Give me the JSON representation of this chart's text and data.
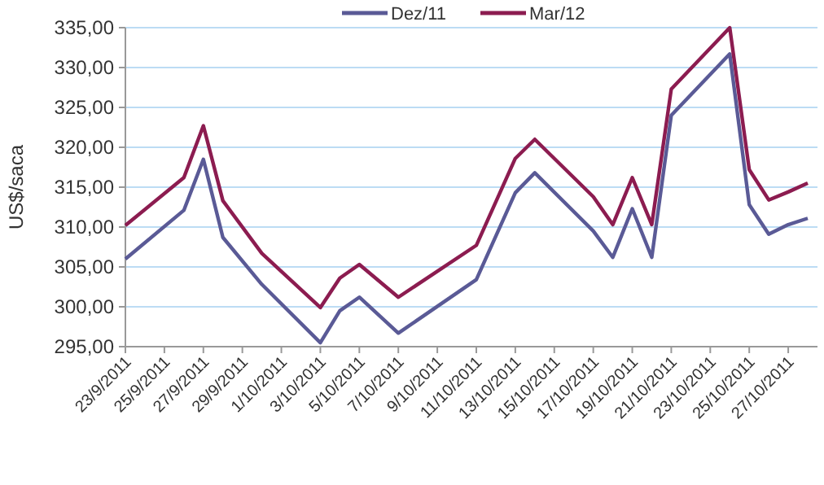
{
  "chart_data": {
    "type": "line",
    "ylabel": "US$/saca",
    "x": [
      "2011-09-23",
      "2011-09-26",
      "2011-09-27",
      "2011-09-28",
      "2011-09-30",
      "2011-10-03",
      "2011-10-04",
      "2011-10-05",
      "2011-10-07",
      "2011-10-11",
      "2011-10-13",
      "2011-10-14",
      "2011-10-17",
      "2011-10-18",
      "2011-10-19",
      "2011-10-20",
      "2011-10-21",
      "2011-10-24",
      "2011-10-25",
      "2011-10-26",
      "2011-10-27",
      "2011-10-28"
    ],
    "series": [
      {
        "name": "Dez/11",
        "color": "#5a5a96",
        "values": [
          306.0,
          312.1,
          318.5,
          308.7,
          302.8,
          295.5,
          299.5,
          301.2,
          296.7,
          303.4,
          314.3,
          316.8,
          309.5,
          306.2,
          312.3,
          306.2,
          324.0,
          331.7,
          312.8,
          309.1,
          310.3,
          311.1
        ]
      },
      {
        "name": "Mar/12",
        "color": "#8c1c50",
        "values": [
          310.2,
          316.2,
          322.7,
          313.3,
          306.7,
          299.9,
          303.6,
          305.3,
          301.2,
          307.7,
          318.6,
          321.0,
          313.8,
          310.3,
          316.2,
          310.3,
          327.3,
          335.0,
          317.2,
          313.4,
          314.4,
          315.5
        ]
      }
    ],
    "xlim": [
      "2011-09-23",
      "2011-10-28T12:00"
    ],
    "xticks": [
      {
        "value": "2011-09-23",
        "label": "23/9/2011"
      },
      {
        "value": "2011-09-25",
        "label": "25/9/2011"
      },
      {
        "value": "2011-09-27",
        "label": "27/9/2011"
      },
      {
        "value": "2011-09-29",
        "label": "29/9/2011"
      },
      {
        "value": "2011-10-01",
        "label": "1/10/2011"
      },
      {
        "value": "2011-10-03",
        "label": "3/10/2011"
      },
      {
        "value": "2011-10-05",
        "label": "5/10/2011"
      },
      {
        "value": "2011-10-07",
        "label": "7/10/2011"
      },
      {
        "value": "2011-10-09",
        "label": "9/10/2011"
      },
      {
        "value": "2011-10-11",
        "label": "11/10/2011"
      },
      {
        "value": "2011-10-13",
        "label": "13/10/2011"
      },
      {
        "value": "2011-10-15",
        "label": "15/10/2011"
      },
      {
        "value": "2011-10-17",
        "label": "17/10/2011"
      },
      {
        "value": "2011-10-19",
        "label": "19/10/2011"
      },
      {
        "value": "2011-10-21",
        "label": "21/10/2011"
      },
      {
        "value": "2011-10-23",
        "label": "23/10/2011"
      },
      {
        "value": "2011-10-25",
        "label": "25/10/2011"
      },
      {
        "value": "2011-10-27",
        "label": "27/10/2011"
      }
    ],
    "ylim": [
      295,
      335
    ],
    "yticks": [
      {
        "value": 295,
        "label": "295,00"
      },
      {
        "value": 300,
        "label": "300,00"
      },
      {
        "value": 305,
        "label": "305,00"
      },
      {
        "value": 310,
        "label": "310,00"
      },
      {
        "value": 315,
        "label": "315,00"
      },
      {
        "value": 320,
        "label": "320,00"
      },
      {
        "value": 325,
        "label": "325,00"
      },
      {
        "value": 330,
        "label": "330,00"
      },
      {
        "value": 335,
        "label": "335,00"
      }
    ],
    "grid": "y",
    "legend": "top",
    "marker": "none",
    "line_style": "solid"
  }
}
